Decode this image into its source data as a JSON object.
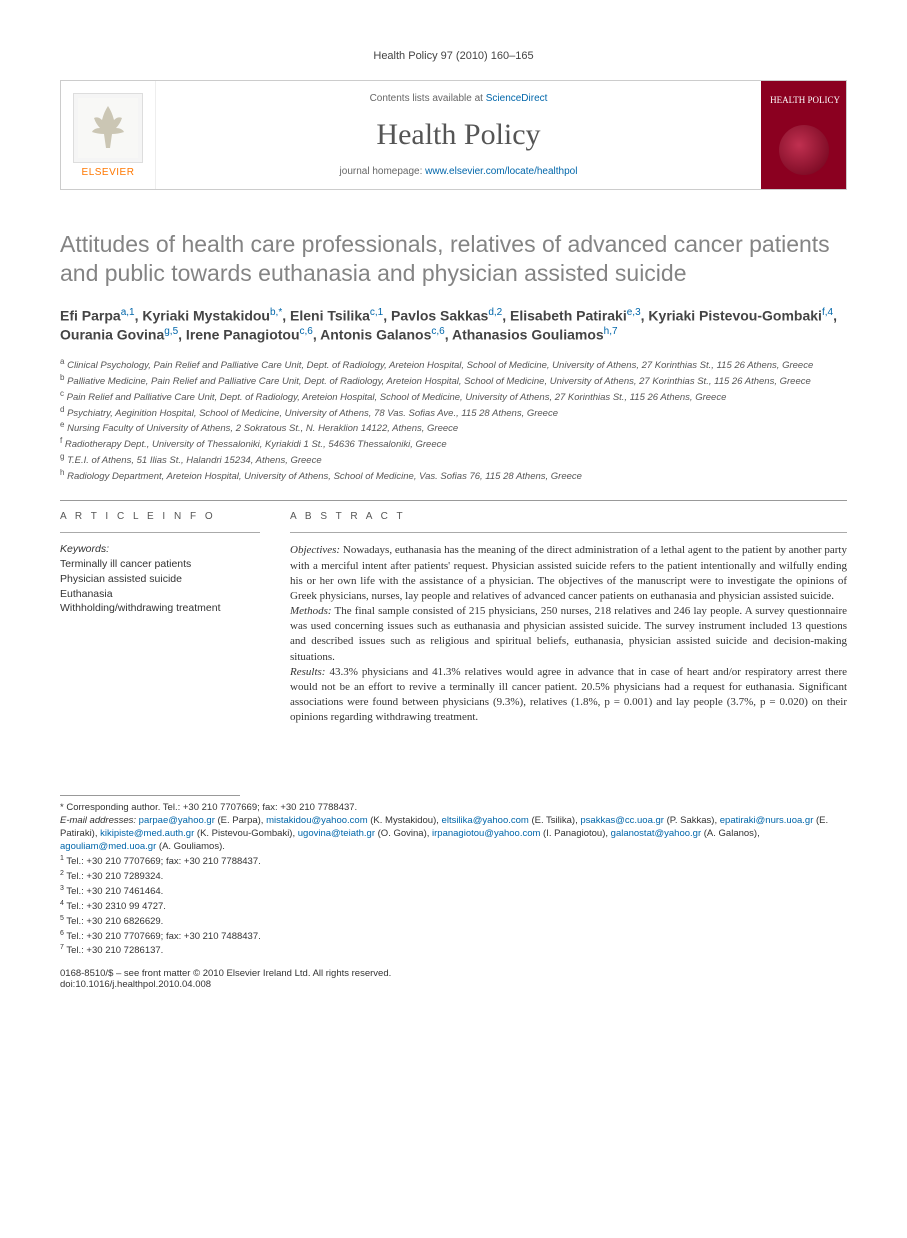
{
  "journal_ref": "Health Policy 97 (2010) 160–165",
  "header": {
    "publisher": "ELSEVIER",
    "contents_prefix": "Contents lists available at ",
    "contents_link": "ScienceDirect",
    "journal_name": "Health Policy",
    "homepage_prefix": "journal homepage: ",
    "homepage_url": "www.elsevier.com/locate/healthpol",
    "cover_title": "HEALTH POLICY"
  },
  "title": "Attitudes of health care professionals, relatives of advanced cancer patients and public towards euthanasia and physician assisted suicide",
  "authors_html": "Efi Parpa<sup>a,1</sup>, Kyriaki Mystakidou<sup>b,*</sup>, Eleni Tsilika<sup>c,1</sup>, Pavlos Sakkas<sup>d,2</sup>, Elisabeth Patiraki<sup>e,3</sup>, Kyriaki Pistevou-Gombaki<sup>f,4</sup>, Ourania Govina<sup>g,5</sup>, Irene Panagiotou<sup>c,6</sup>, Antonis Galanos<sup>c,6</sup>, Athanasios Gouliamos<sup>h,7</sup>",
  "affiliations": [
    {
      "k": "a",
      "t": "Clinical Psychology, Pain Relief and Palliative Care Unit, Dept. of Radiology, Areteion Hospital, School of Medicine, University of Athens, 27 Korinthias St., 115 26 Athens, Greece"
    },
    {
      "k": "b",
      "t": "Palliative Medicine, Pain Relief and Palliative Care Unit, Dept. of Radiology, Areteion Hospital, School of Medicine, University of Athens, 27 Korinthias St., 115 26 Athens, Greece"
    },
    {
      "k": "c",
      "t": "Pain Relief and Palliative Care Unit, Dept. of Radiology, Areteion Hospital, School of Medicine, University of Athens, 27 Korinthias St., 115 26 Athens, Greece"
    },
    {
      "k": "d",
      "t": "Psychiatry, Aeginition Hospital, School of Medicine, University of Athens, 78 Vas. Sofias Ave., 115 28 Athens, Greece"
    },
    {
      "k": "e",
      "t": "Nursing Faculty of University of Athens, 2 Sokratous St., N. Heraklion 14122, Athens, Greece"
    },
    {
      "k": "f",
      "t": "Radiotherapy Dept., University of Thessaloniki, Kyriakidi 1 St., 54636 Thessaloniki, Greece"
    },
    {
      "k": "g",
      "t": "T.E.I. of Athens, 51 Ilias St., Halandri 15234, Athens, Greece"
    },
    {
      "k": "h",
      "t": "Radiology Department, Areteion Hospital, University of Athens, School of Medicine, Vas. Sofias 76, 115 28 Athens, Greece"
    }
  ],
  "article_info_head": "A R T I C L E   I N F O",
  "abstract_head": "A B S T R A C T",
  "keywords_head": "Keywords:",
  "keywords": "Terminally ill cancer patients\nPhysician assisted suicide\nEuthanasia\nWithholding/withdrawing treatment",
  "abstract": {
    "objectives_label": "Objectives:",
    "objectives": " Nowadays, euthanasia has the meaning of the direct administration of a lethal agent to the patient by another party with a merciful intent after patients' request. Physician assisted suicide refers to the patient intentionally and wilfully ending his or her own life with the assistance of a physician. The objectives of the manuscript were to investigate the opinions of Greek physicians, nurses, lay people and relatives of advanced cancer patients on euthanasia and physician assisted suicide.",
    "methods_label": "Methods:",
    "methods": " The final sample consisted of 215 physicians, 250 nurses, 218 relatives and 246 lay people. A survey questionnaire was used concerning issues such as euthanasia and physician assisted suicide. The survey instrument included 13 questions and described issues such as religious and spiritual beliefs, euthanasia, physician assisted suicide and decision-making situations.",
    "results_label": "Results:",
    "results": " 43.3% physicians and 41.3% relatives would agree in advance that in case of heart and/or respiratory arrest there would not be an effort to revive a terminally ill cancer patient. 20.5% physicians had a request for euthanasia. Significant associations were found between physicians (9.3%), relatives (1.8%, p = 0.001) and lay people (3.7%, p = 0.020) on their opinions regarding withdrawing treatment."
  },
  "footnotes": {
    "corresponding": "* Corresponding author. Tel.: +30 210 7707669; fax: +30 210 7788437.",
    "email_label": "E-mail addresses: ",
    "emails": [
      {
        "e": "parpae@yahoo.gr",
        "p": " (E. Parpa), "
      },
      {
        "e": "mistakidou@yahoo.com",
        "p": " (K. Mystakidou), "
      },
      {
        "e": "eltsilika@yahoo.com",
        "p": " (E. Tsilika), "
      },
      {
        "e": "psakkas@cc.uoa.gr",
        "p": " (P. Sakkas), "
      },
      {
        "e": "epatiraki@nurs.uoa.gr",
        "p": " (E. Patiraki), "
      },
      {
        "e": "kikipiste@med.auth.gr",
        "p": " (K. Pistevou-Gombaki), "
      },
      {
        "e": "ugovina@teiath.gr",
        "p": " (O. Govina), "
      },
      {
        "e": "irpanagiotou@yahoo.com",
        "p": " (I. Panagiotou), "
      },
      {
        "e": "galanostat@yahoo.gr",
        "p": " (A. Galanos), "
      },
      {
        "e": "agouliam@med.uoa.gr",
        "p": " (A. Gouliamos)."
      }
    ],
    "tels": [
      {
        "k": "1",
        "t": "Tel.: +30 210 7707669; fax: +30 210 7788437."
      },
      {
        "k": "2",
        "t": "Tel.: +30 210 7289324."
      },
      {
        "k": "3",
        "t": "Tel.: +30 210 7461464."
      },
      {
        "k": "4",
        "t": "Tel.: +30 2310 99 4727."
      },
      {
        "k": "5",
        "t": "Tel.: +30 210 6826629."
      },
      {
        "k": "6",
        "t": "Tel.: +30 210 7707669; fax: +30 210 7488437."
      },
      {
        "k": "7",
        "t": "Tel.: +30 210 7286137."
      }
    ]
  },
  "doi": {
    "issn": "0168-8510/$ – see front matter © 2010 Elsevier Ireland Ltd. All rights reserved.",
    "doi": "doi:10.1016/j.healthpol.2010.04.008"
  }
}
